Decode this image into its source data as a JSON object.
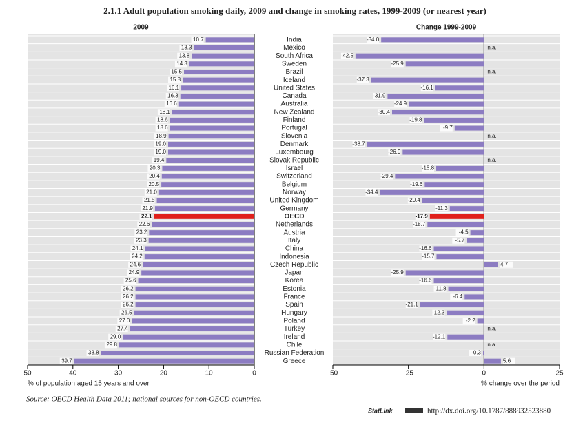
{
  "chart_data": {
    "type": "hbar",
    "title": "2.1.1  Adult population smoking daily, 2009 and change in smoking rates, 1999-2009 (or nearest year)",
    "categories": [
      "India",
      "Mexico",
      "South Africa",
      "Sweden",
      "Brazil",
      "Iceland",
      "United States",
      "Canada",
      "Australia",
      "New Zealand",
      "Finland",
      "Portugal",
      "Slovenia",
      "Denmark",
      "Luxembourg",
      "Slovak Republic",
      "Israel",
      "Switzerland",
      "Belgium",
      "Norway",
      "United Kingdom",
      "Germany",
      "OECD",
      "Netherlands",
      "Austria",
      "Italy",
      "China",
      "Indonesia",
      "Czech Republic",
      "Japan",
      "Korea",
      "Estonia",
      "France",
      "Spain",
      "Hungary",
      "Poland",
      "Turkey",
      "Ireland",
      "Chile",
      "Russian Federation",
      "Greece"
    ],
    "panels": [
      {
        "title": "2009",
        "values": [
          10.7,
          13.3,
          13.8,
          14.3,
          15.5,
          15.8,
          16.1,
          16.3,
          16.6,
          18.1,
          18.6,
          18.6,
          18.9,
          19.0,
          19.0,
          19.4,
          20.3,
          20.4,
          20.5,
          21.0,
          21.5,
          21.9,
          22.1,
          22.6,
          23.2,
          23.3,
          24.1,
          24.2,
          24.6,
          24.9,
          25.6,
          26.2,
          26.2,
          26.2,
          26.5,
          27.0,
          27.4,
          29.0,
          29.8,
          33.8,
          39.7
        ],
        "value_labels": [
          "10.7",
          "13.3",
          "13.8",
          "14.3",
          "15.5",
          "15.8",
          "16.1",
          "16.3",
          "16.6",
          "18.1",
          "18.6",
          "18.6",
          "18.9",
          "19.0",
          "19.0",
          "19.4",
          "20.3",
          "20.4",
          "20.5",
          "21.0",
          "21.5",
          "21.9",
          "22.1",
          "22.6",
          "23.2",
          "23.3",
          "24.1",
          "24.2",
          "24.6",
          "24.9",
          "25.6",
          "26.2",
          "26.2",
          "26.2",
          "26.5",
          "27.0",
          "27.4",
          "29.0",
          "29.8",
          "33.8",
          "39.7"
        ],
        "colors": [
          "#8c7cc2",
          "#8c7cc2",
          "#8c7cc2",
          "#8c7cc2",
          "#8c7cc2",
          "#8c7cc2",
          "#8c7cc2",
          "#8c7cc2",
          "#8c7cc2",
          "#8c7cc2",
          "#8c7cc2",
          "#8c7cc2",
          "#8c7cc2",
          "#8c7cc2",
          "#8c7cc2",
          "#8c7cc2",
          "#8c7cc2",
          "#8c7cc2",
          "#8c7cc2",
          "#8c7cc2",
          "#8c7cc2",
          "#8c7cc2",
          "#e0201b",
          "#8c7cc2",
          "#8c7cc2",
          "#8c7cc2",
          "#8c7cc2",
          "#8c7cc2",
          "#8c7cc2",
          "#8c7cc2",
          "#8c7cc2",
          "#8c7cc2",
          "#8c7cc2",
          "#8c7cc2",
          "#8c7cc2",
          "#8c7cc2",
          "#8c7cc2",
          "#8c7cc2",
          "#8c7cc2",
          "#8c7cc2",
          "#8c7cc2"
        ],
        "xlim": [
          0,
          50
        ],
        "inverted": true,
        "xticks": [
          50,
          40,
          30,
          20,
          10,
          0
        ],
        "xlabel": "% of population aged 15 years and over"
      },
      {
        "title": "Change 1999-2009",
        "values": [
          -34.0,
          null,
          -42.5,
          -25.9,
          null,
          -37.3,
          -16.1,
          -31.9,
          -24.9,
          -30.4,
          -19.8,
          -9.7,
          null,
          -38.7,
          -26.9,
          null,
          -15.8,
          -29.4,
          -19.6,
          -34.4,
          -20.4,
          -11.3,
          -17.9,
          -18.7,
          -4.5,
          -5.7,
          -16.6,
          -15.7,
          4.7,
          -25.9,
          -16.6,
          -11.8,
          -6.4,
          -21.1,
          -12.3,
          -2.2,
          null,
          -12.1,
          null,
          -0.3,
          5.6
        ],
        "value_labels": [
          "-34.0",
          "n.a.",
          "-42.5",
          "-25.9",
          "n.a.",
          "-37.3",
          "-16.1",
          "-31.9",
          "-24.9",
          "-30.4",
          "-19.8",
          "-9.7",
          "n.a.",
          "-38.7",
          "-26.9",
          "n.a.",
          "-15.8",
          "-29.4",
          "-19.6",
          "-34.4",
          "-20.4",
          "-11.3",
          "-17.9",
          "-18.7",
          "-4.5",
          "-5.7",
          "-16.6",
          "-15.7",
          "4.7",
          "-25.9",
          "-16.6",
          "-11.8",
          "-6.4",
          "-21.1",
          "-12.3",
          "-2.2",
          "n.a.",
          "-12.1",
          "n.a.",
          "-0.3",
          "5.6"
        ],
        "colors": [
          "#8c7cc2",
          "#8c7cc2",
          "#8c7cc2",
          "#8c7cc2",
          "#8c7cc2",
          "#8c7cc2",
          "#8c7cc2",
          "#8c7cc2",
          "#8c7cc2",
          "#8c7cc2",
          "#8c7cc2",
          "#8c7cc2",
          "#8c7cc2",
          "#8c7cc2",
          "#8c7cc2",
          "#8c7cc2",
          "#8c7cc2",
          "#8c7cc2",
          "#8c7cc2",
          "#8c7cc2",
          "#8c7cc2",
          "#8c7cc2",
          "#e0201b",
          "#8c7cc2",
          "#8c7cc2",
          "#8c7cc2",
          "#8c7cc2",
          "#8c7cc2",
          "#8c7cc2",
          "#8c7cc2",
          "#8c7cc2",
          "#8c7cc2",
          "#8c7cc2",
          "#8c7cc2",
          "#8c7cc2",
          "#8c7cc2",
          "#8c7cc2",
          "#8c7cc2",
          "#8c7cc2",
          "#8c7cc2",
          "#8c7cc2"
        ],
        "xlim": [
          -50,
          25
        ],
        "inverted": false,
        "xticks": [
          -50,
          -25,
          0,
          25
        ],
        "xlabel": "% change over the period"
      }
    ],
    "source": "Source:  OECD Health Data 2011; national sources for non-OECD countries.",
    "statlink_label": "StatLink",
    "statlink_url": "http://dx.doi.org/10.1787/888932523880"
  }
}
